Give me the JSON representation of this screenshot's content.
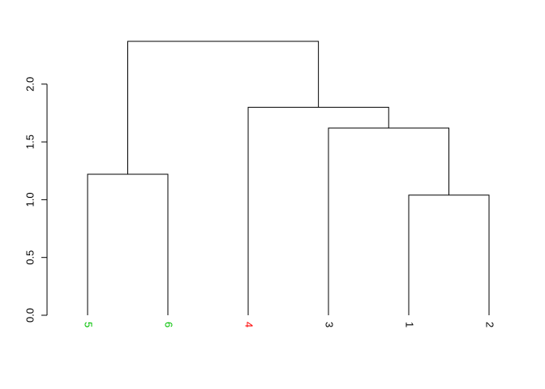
{
  "chart_data": {
    "type": "dendrogram",
    "title": "",
    "xlabel": "",
    "ylabel": "",
    "ylim": [
      0,
      2.37
    ],
    "y_ticks": [
      0.0,
      0.5,
      1.0,
      1.5,
      2.0
    ],
    "y_tick_labels": [
      "0.0",
      "0.5",
      "1.0",
      "1.5",
      "2.0"
    ],
    "leaves": [
      {
        "label": "5",
        "color": "#00c000"
      },
      {
        "label": "6",
        "color": "#00c000"
      },
      {
        "label": "4",
        "color": "#ff0000"
      },
      {
        "label": "3",
        "color": "#000000"
      },
      {
        "label": "1",
        "color": "#000000"
      },
      {
        "label": "2",
        "color": "#000000"
      }
    ],
    "merges": [
      {
        "left": "5",
        "right": "6",
        "height": 1.22
      },
      {
        "left": "1",
        "right": "2",
        "height": 1.04
      },
      {
        "left": "3",
        "right": "1-2",
        "height": 1.62
      },
      {
        "left": "4",
        "right": "3-1-2",
        "height": 1.8
      },
      {
        "left": "5-6",
        "right": "4-3-1-2",
        "height": 2.37
      }
    ]
  }
}
